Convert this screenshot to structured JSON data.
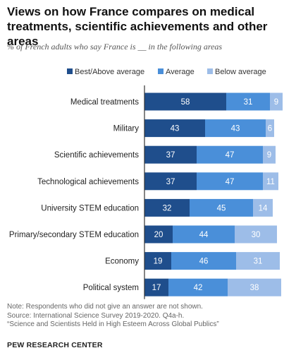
{
  "title": "Views on how France compares on medical treatments, scientific achievements and other areas",
  "subtitle": "% of French adults who say France is __ in the following areas",
  "colors": {
    "best_above": "#1f4e8c",
    "average": "#4a8fd9",
    "below": "#9dbde8",
    "axis": "#333333"
  },
  "chart_data": {
    "type": "bar",
    "orientation": "horizontal",
    "stacked": true,
    "categories": [
      "Medical treatments",
      "Military",
      "Scientific achievements",
      "Technological achievements",
      "University STEM education",
      "Primary/secondary STEM education",
      "Economy",
      "Political system"
    ],
    "series": [
      {
        "name": "Best/Above average",
        "values": [
          58,
          43,
          37,
          37,
          32,
          20,
          19,
          17
        ]
      },
      {
        "name": "Average",
        "values": [
          31,
          43,
          47,
          47,
          45,
          44,
          46,
          42
        ]
      },
      {
        "name": "Below average",
        "values": [
          9,
          6,
          9,
          11,
          14,
          30,
          31,
          38
        ]
      }
    ],
    "xlim": [
      0,
      100
    ],
    "legend_position": "top",
    "grid": false
  },
  "footer": {
    "note": "Note: Respondents who did not give an answer are not shown.",
    "source": "Source: International Science Survey 2019-2020. Q4a-h.",
    "report": "“Science and Scientists Held in High Esteem Across Global Publics”",
    "org": "PEW RESEARCH CENTER"
  }
}
